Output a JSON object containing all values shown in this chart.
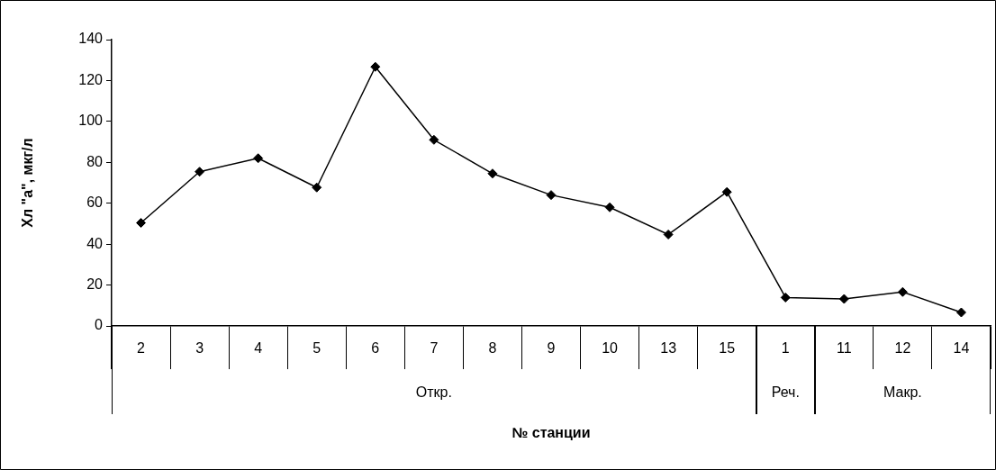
{
  "chart_data": {
    "type": "line",
    "xlabel": "№ станции",
    "ylabel": "Хл \"а\", мкг/л",
    "categories": [
      "2",
      "3",
      "4",
      "5",
      "6",
      "7",
      "8",
      "9",
      "10",
      "13",
      "15",
      "1",
      "11",
      "12",
      "14"
    ],
    "series": [
      {
        "color": "#000000",
        "values": [
          50.4,
          75.4,
          82,
          67.7,
          126.7,
          91,
          74.5,
          64,
          58,
          44.7,
          65.5,
          13.9,
          13.2,
          16.6,
          6.6
        ]
      }
    ],
    "ylim": [
      0,
      140
    ],
    "yticks": [
      0,
      20,
      40,
      60,
      80,
      100,
      120,
      140
    ],
    "grid": false,
    "legend": false,
    "marker": "diamond",
    "line_style": "solid",
    "annotations": [
      "Откр.",
      "Реч.",
      "Макр."
    ]
  }
}
